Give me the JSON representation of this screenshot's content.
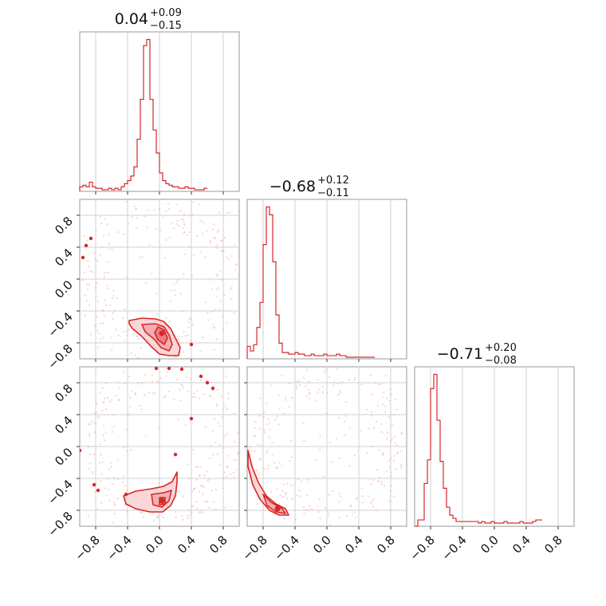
{
  "chart_data": {
    "type": "corner",
    "description_units": "data units; x and y ranges shared across parameters",
    "range": [
      -1.0,
      1.0
    ],
    "ticks": [
      -0.8,
      -0.4,
      0.0,
      0.4,
      0.8
    ],
    "tick_labels": [
      "−0.8",
      "−0.4",
      "0.0",
      "0.4",
      "0.8"
    ],
    "grid": true,
    "color": "#d62728",
    "fill_color": "#f4b6b9",
    "point_color": "#f2a7aa",
    "parameters": [
      {
        "median": "0.04",
        "plus": "+0.09",
        "minus": "−0.15",
        "hist_bin_edges_start": -1.0,
        "hist_bin_width": 0.04,
        "hist_counts": [
          3,
          4,
          3,
          6,
          3,
          2,
          2,
          1,
          1,
          2,
          1,
          2,
          1,
          3,
          5,
          7,
          10,
          16,
          34,
          60,
          95,
          99,
          60,
          40,
          25,
          12,
          7,
          5,
          4,
          3,
          3,
          2,
          2,
          3,
          2,
          2,
          1,
          1,
          1,
          2
        ]
      },
      {
        "median": "−0.68",
        "plus": "+0.12",
        "minus": "−0.11",
        "hist_bin_edges_start": -1.0,
        "hist_bin_width": 0.04,
        "hist_counts": [
          8,
          5,
          9,
          20,
          36,
          73,
          97,
          92,
          62,
          28,
          10,
          4,
          4,
          3,
          3,
          4,
          3,
          3,
          2,
          2,
          3,
          2,
          2,
          2,
          3,
          2,
          2,
          2,
          3,
          2,
          2,
          1,
          1,
          1,
          1,
          1,
          1,
          1,
          1,
          1
        ]
      },
      {
        "median": "−0.71",
        "plus": "+0.20",
        "minus": "−0.08",
        "hist_bin_edges_start": -1.0,
        "hist_bin_width": 0.04,
        "hist_counts": [
          0,
          4,
          4,
          27,
          42,
          87,
          96,
          67,
          41,
          24,
          12,
          7,
          5,
          3,
          3,
          3,
          3,
          3,
          3,
          3,
          2,
          3,
          2,
          2,
          3,
          2,
          2,
          2,
          3,
          2,
          2,
          2,
          2,
          3,
          2,
          2,
          2,
          3,
          4,
          4
        ]
      }
    ],
    "panels_2d": [
      {
        "x_param": 0,
        "y_param": 1,
        "contour_levels": [
          {
            "points": [
              [
                -0.38,
                -0.52
              ],
              [
                -0.22,
                -0.49
              ],
              [
                -0.05,
                -0.5
              ],
              [
                0.05,
                -0.53
              ],
              [
                0.14,
                -0.62
              ],
              [
                0.2,
                -0.74
              ],
              [
                0.26,
                -0.86
              ],
              [
                0.24,
                -0.96
              ],
              [
                0.12,
                -0.96
              ],
              [
                0.0,
                -0.94
              ],
              [
                -0.1,
                -0.85
              ],
              [
                -0.22,
                -0.72
              ],
              [
                -0.34,
                -0.62
              ],
              [
                -0.38,
                -0.56
              ]
            ]
          },
          {
            "points": [
              [
                -0.22,
                -0.57
              ],
              [
                -0.05,
                -0.56
              ],
              [
                0.06,
                -0.6
              ],
              [
                0.12,
                -0.7
              ],
              [
                0.16,
                -0.82
              ],
              [
                0.12,
                -0.9
              ],
              [
                0.02,
                -0.86
              ],
              [
                -0.06,
                -0.76
              ],
              [
                -0.18,
                -0.66
              ]
            ]
          },
          {
            "points": [
              [
                -0.02,
                -0.6
              ],
              [
                0.06,
                -0.64
              ],
              [
                0.1,
                -0.74
              ],
              [
                0.06,
                -0.82
              ],
              [
                -0.02,
                -0.76
              ],
              [
                -0.06,
                -0.67
              ]
            ]
          }
        ],
        "islands": [
          [
            -0.96,
            0.27
          ],
          [
            -0.92,
            0.42
          ],
          [
            -0.86,
            0.51
          ],
          [
            0.4,
            -0.82
          ]
        ],
        "mode": [
          0.03,
          -0.68
        ]
      },
      {
        "x_param": 0,
        "y_param": 2,
        "contour_levels": [
          {
            "points": [
              [
                -0.45,
                -0.62
              ],
              [
                -0.3,
                -0.56
              ],
              [
                -0.1,
                -0.53
              ],
              [
                0.05,
                -0.5
              ],
              [
                0.16,
                -0.44
              ],
              [
                0.22,
                -0.32
              ],
              [
                0.22,
                -0.45
              ],
              [
                0.2,
                -0.62
              ],
              [
                0.14,
                -0.74
              ],
              [
                0.04,
                -0.82
              ],
              [
                -0.12,
                -0.82
              ],
              [
                -0.3,
                -0.78
              ],
              [
                -0.42,
                -0.72
              ]
            ]
          },
          {
            "points": [
              [
                -0.1,
                -0.6
              ],
              [
                0.05,
                -0.58
              ],
              [
                0.15,
                -0.55
              ],
              [
                0.12,
                -0.68
              ],
              [
                0.03,
                -0.76
              ],
              [
                -0.08,
                -0.73
              ]
            ]
          },
          {
            "points": [
              [
                0.0,
                -0.64
              ],
              [
                0.07,
                -0.64
              ],
              [
                0.07,
                -0.72
              ],
              [
                0.0,
                -0.73
              ]
            ]
          }
        ],
        "islands": [
          [
            -1.0,
            -0.05
          ],
          [
            -0.82,
            -0.48
          ],
          [
            -0.77,
            -0.55
          ],
          [
            0.6,
            0.8
          ],
          [
            0.67,
            0.73
          ],
          [
            0.52,
            0.88
          ],
          [
            0.28,
            0.97
          ],
          [
            0.12,
            0.98
          ],
          [
            -0.04,
            0.98
          ],
          [
            0.4,
            0.35
          ],
          [
            0.2,
            -0.1
          ],
          [
            -0.42,
            -0.6
          ]
        ],
        "mode": [
          0.03,
          -0.68
        ]
      },
      {
        "x_param": 1,
        "y_param": 2,
        "contour_levels": [
          {
            "points": [
              [
                -0.99,
                -0.05
              ],
              [
                -0.94,
                -0.25
              ],
              [
                -0.86,
                -0.45
              ],
              [
                -0.76,
                -0.62
              ],
              [
                -0.64,
                -0.72
              ],
              [
                -0.52,
                -0.78
              ],
              [
                -0.48,
                -0.86
              ],
              [
                -0.6,
                -0.86
              ],
              [
                -0.72,
                -0.8
              ],
              [
                -0.84,
                -0.66
              ],
              [
                -0.93,
                -0.48
              ],
              [
                -0.99,
                -0.25
              ]
            ]
          },
          {
            "points": [
              [
                -0.8,
                -0.6
              ],
              [
                -0.7,
                -0.7
              ],
              [
                -0.56,
                -0.78
              ],
              [
                -0.52,
                -0.84
              ],
              [
                -0.64,
                -0.82
              ],
              [
                -0.75,
                -0.74
              ]
            ]
          }
        ],
        "islands": [],
        "mode": [
          -0.62,
          -0.78
        ]
      }
    ]
  }
}
